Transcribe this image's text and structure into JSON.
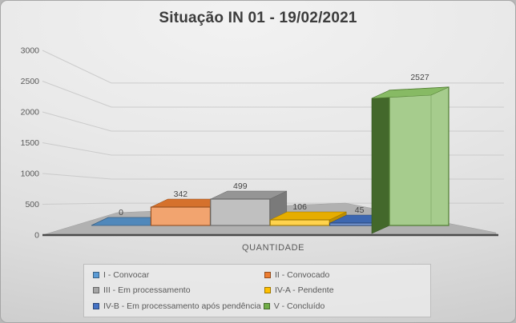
{
  "panel": {
    "title": "Situação IN 01 - 19/02/2021"
  },
  "chart_data": {
    "type": "bar",
    "style": "3d-clustered-column",
    "title": "Situação IN 01 - 19/02/2021",
    "xlabel": "QUANTIDADE",
    "ylabel": "",
    "ylim": [
      0,
      3000
    ],
    "y_ticks": [
      0,
      500,
      1000,
      1500,
      2000,
      2500,
      3000
    ],
    "grid": true,
    "data_labels": true,
    "legend_position": "bottom",
    "categories": [
      "QUANTIDADE"
    ],
    "series": [
      {
        "name": "I - Convocar",
        "value": 0,
        "color": "#5B9BD5"
      },
      {
        "name": "II - Convocado",
        "value": 342,
        "color": "#ED7D31"
      },
      {
        "name": "III - Em processamento",
        "value": 499,
        "color": "#A5A5A5"
      },
      {
        "name": "IV-A - Pendente",
        "value": 106,
        "color": "#FFC000"
      },
      {
        "name": "IV-B - Em processamento após pendência",
        "value": 45,
        "color": "#4472C4"
      },
      {
        "name": "V - Concluído",
        "value": 2527,
        "color": "#70AD47"
      }
    ],
    "floor_color": "#b1b1b1",
    "axis_line_color": "#4a4a4a",
    "gridline_color": "#c8c8c8"
  }
}
